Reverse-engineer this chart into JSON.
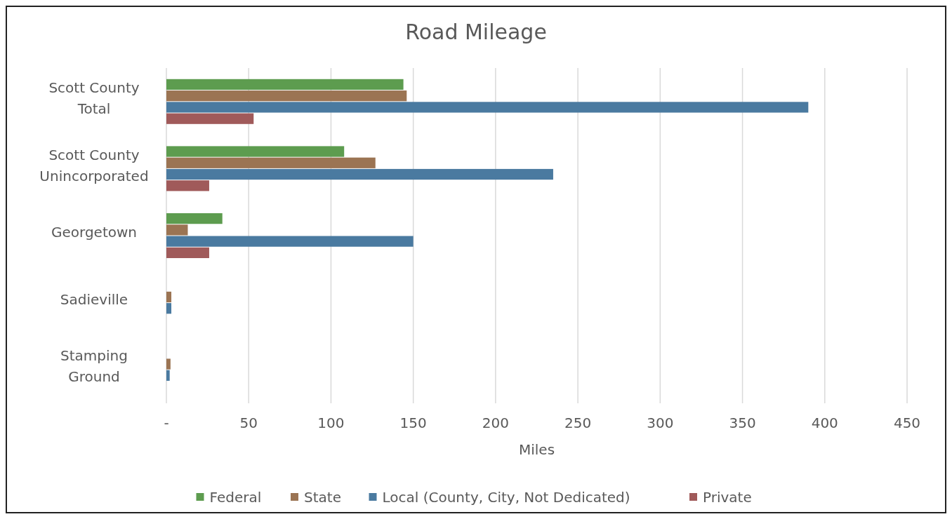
{
  "chart_data": {
    "type": "bar",
    "orientation": "horizontal",
    "title": "Road Mileage",
    "xlabel": "Miles",
    "categories": [
      "Scott County Total",
      "Scott County Unincorporated",
      "Georgetown",
      "Sadieville",
      "Stamping Ground"
    ],
    "series": [
      {
        "name": "Federal",
        "color": "#5d9c4f",
        "values": [
          144,
          108,
          34,
          0,
          0
        ]
      },
      {
        "name": "State",
        "color": "#9b7453",
        "values": [
          146,
          127,
          13,
          3,
          2.5
        ]
      },
      {
        "name": "Local (County, City, Not Dedicated)",
        "color": "#4a7aa0",
        "values": [
          390,
          235,
          150,
          3,
          2
        ]
      },
      {
        "name": "Private",
        "color": "#a05a5a",
        "values": [
          53,
          26,
          26,
          0,
          0
        ]
      }
    ],
    "xlim": [
      0,
      450
    ],
    "xticks": [
      {
        "value": 0,
        "label": "-"
      },
      50,
      100,
      150,
      200,
      250,
      300,
      350,
      400,
      450
    ],
    "grid": "x",
    "legend": "bottom"
  }
}
